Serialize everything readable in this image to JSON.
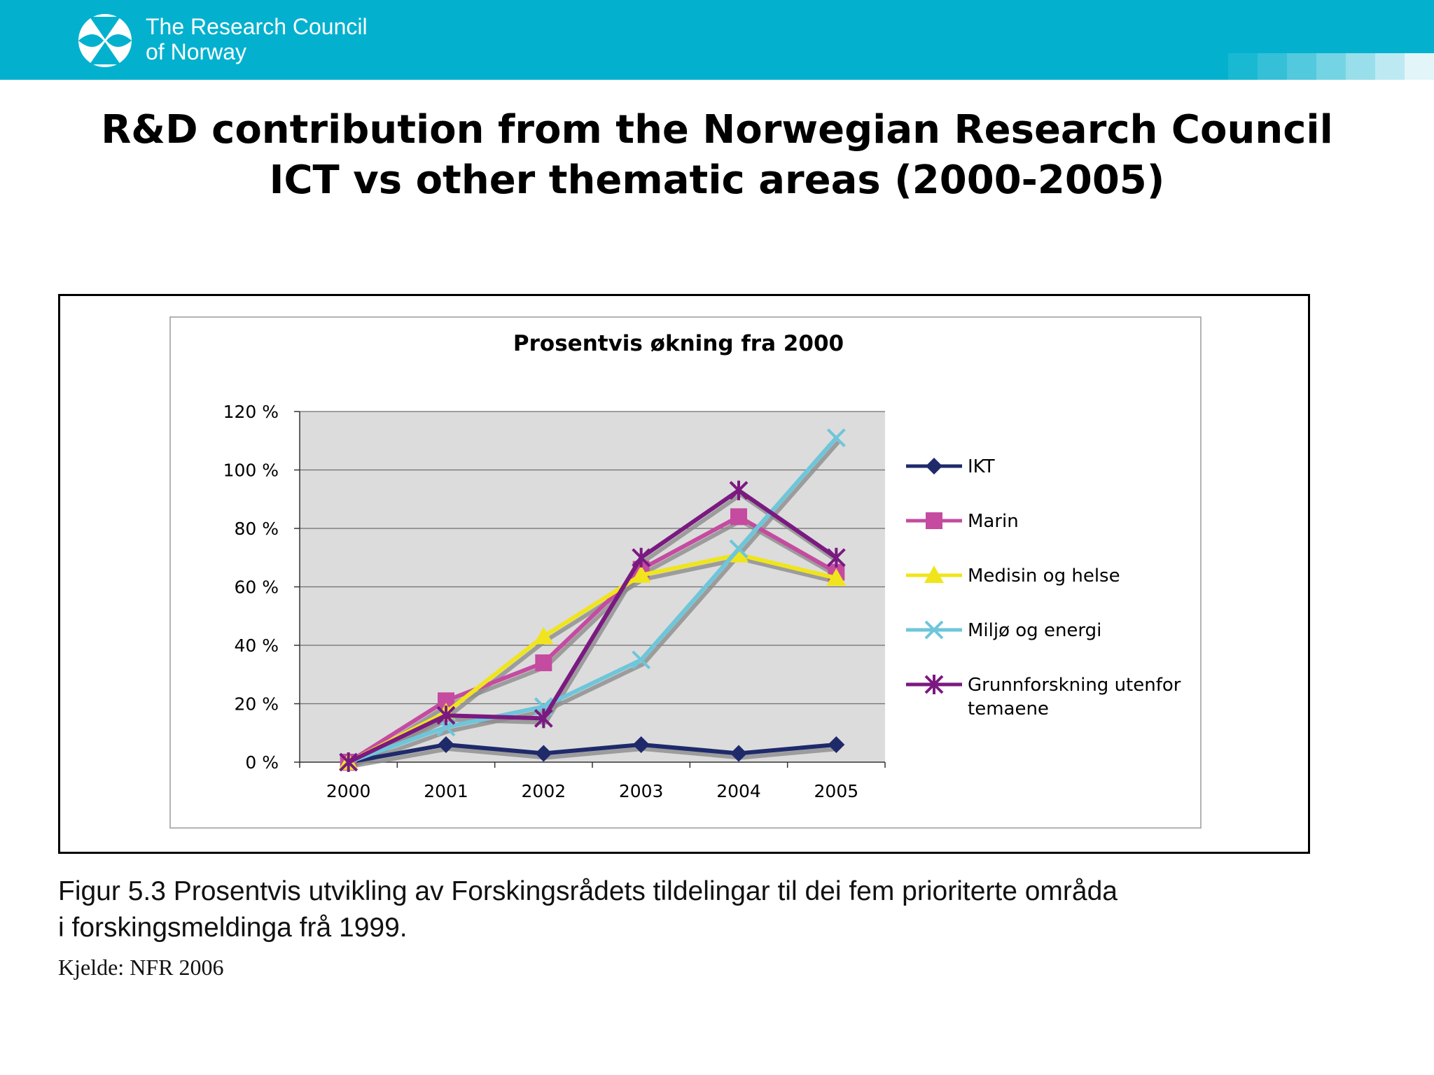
{
  "header": {
    "logo_line1": "The Research Council",
    "logo_line2": "of Norway",
    "band_color": "#03b1cf",
    "logo_icon": "research-council-logo-icon"
  },
  "slide": {
    "title_line1": "R&D contribution from the Norwegian Research Council",
    "title_line2": "ICT vs other thematic areas (2000-2005)"
  },
  "caption": {
    "line1": "Figur 5.3  Prosentvis utvikling av Forskingsrådets tildelingar til dei fem prioriterte områda",
    "line2": "i forskingsmeldinga frå 1999.",
    "source": "Kjelde: NFR 2006"
  },
  "chart_data": {
    "type": "line",
    "title": "Prosentvis økning fra 2000",
    "xlabel": "",
    "ylabel": "",
    "categories": [
      "2000",
      "2001",
      "2002",
      "2003",
      "2004",
      "2005"
    ],
    "ylim": [
      0,
      120
    ],
    "ytick_values": [
      0,
      20,
      40,
      60,
      80,
      100,
      120
    ],
    "ytick_labels": [
      "0 %",
      "20 %",
      "40 %",
      "60 %",
      "80 %",
      "100 %",
      "120 %"
    ],
    "grid": true,
    "legend_position": "right",
    "plot_background": "#dcdcdc",
    "series": [
      {
        "name": "IKT",
        "values": [
          0,
          6,
          3,
          6,
          3,
          6
        ],
        "color": "#1f2a6b",
        "marker": "diamond"
      },
      {
        "name": "Marin",
        "values": [
          0,
          21,
          34,
          66,
          84,
          65
        ],
        "color": "#c54ba0",
        "marker": "square"
      },
      {
        "name": "Medisin og helse",
        "values": [
          0,
          17,
          43,
          64,
          71,
          63
        ],
        "color": "#f0e51c",
        "marker": "triangle"
      },
      {
        "name": "Miljø og energi",
        "values": [
          0,
          12,
          19,
          35,
          73,
          111
        ],
        "color": "#6ec6da",
        "marker": "x"
      },
      {
        "name": "Grunnforskning utenfor temaene",
        "legend_lines": [
          "Grunnforskning utenfor",
          "temaene"
        ],
        "values": [
          0,
          16,
          15,
          70,
          93,
          70
        ],
        "color": "#7a1a80",
        "marker": "star"
      }
    ]
  }
}
